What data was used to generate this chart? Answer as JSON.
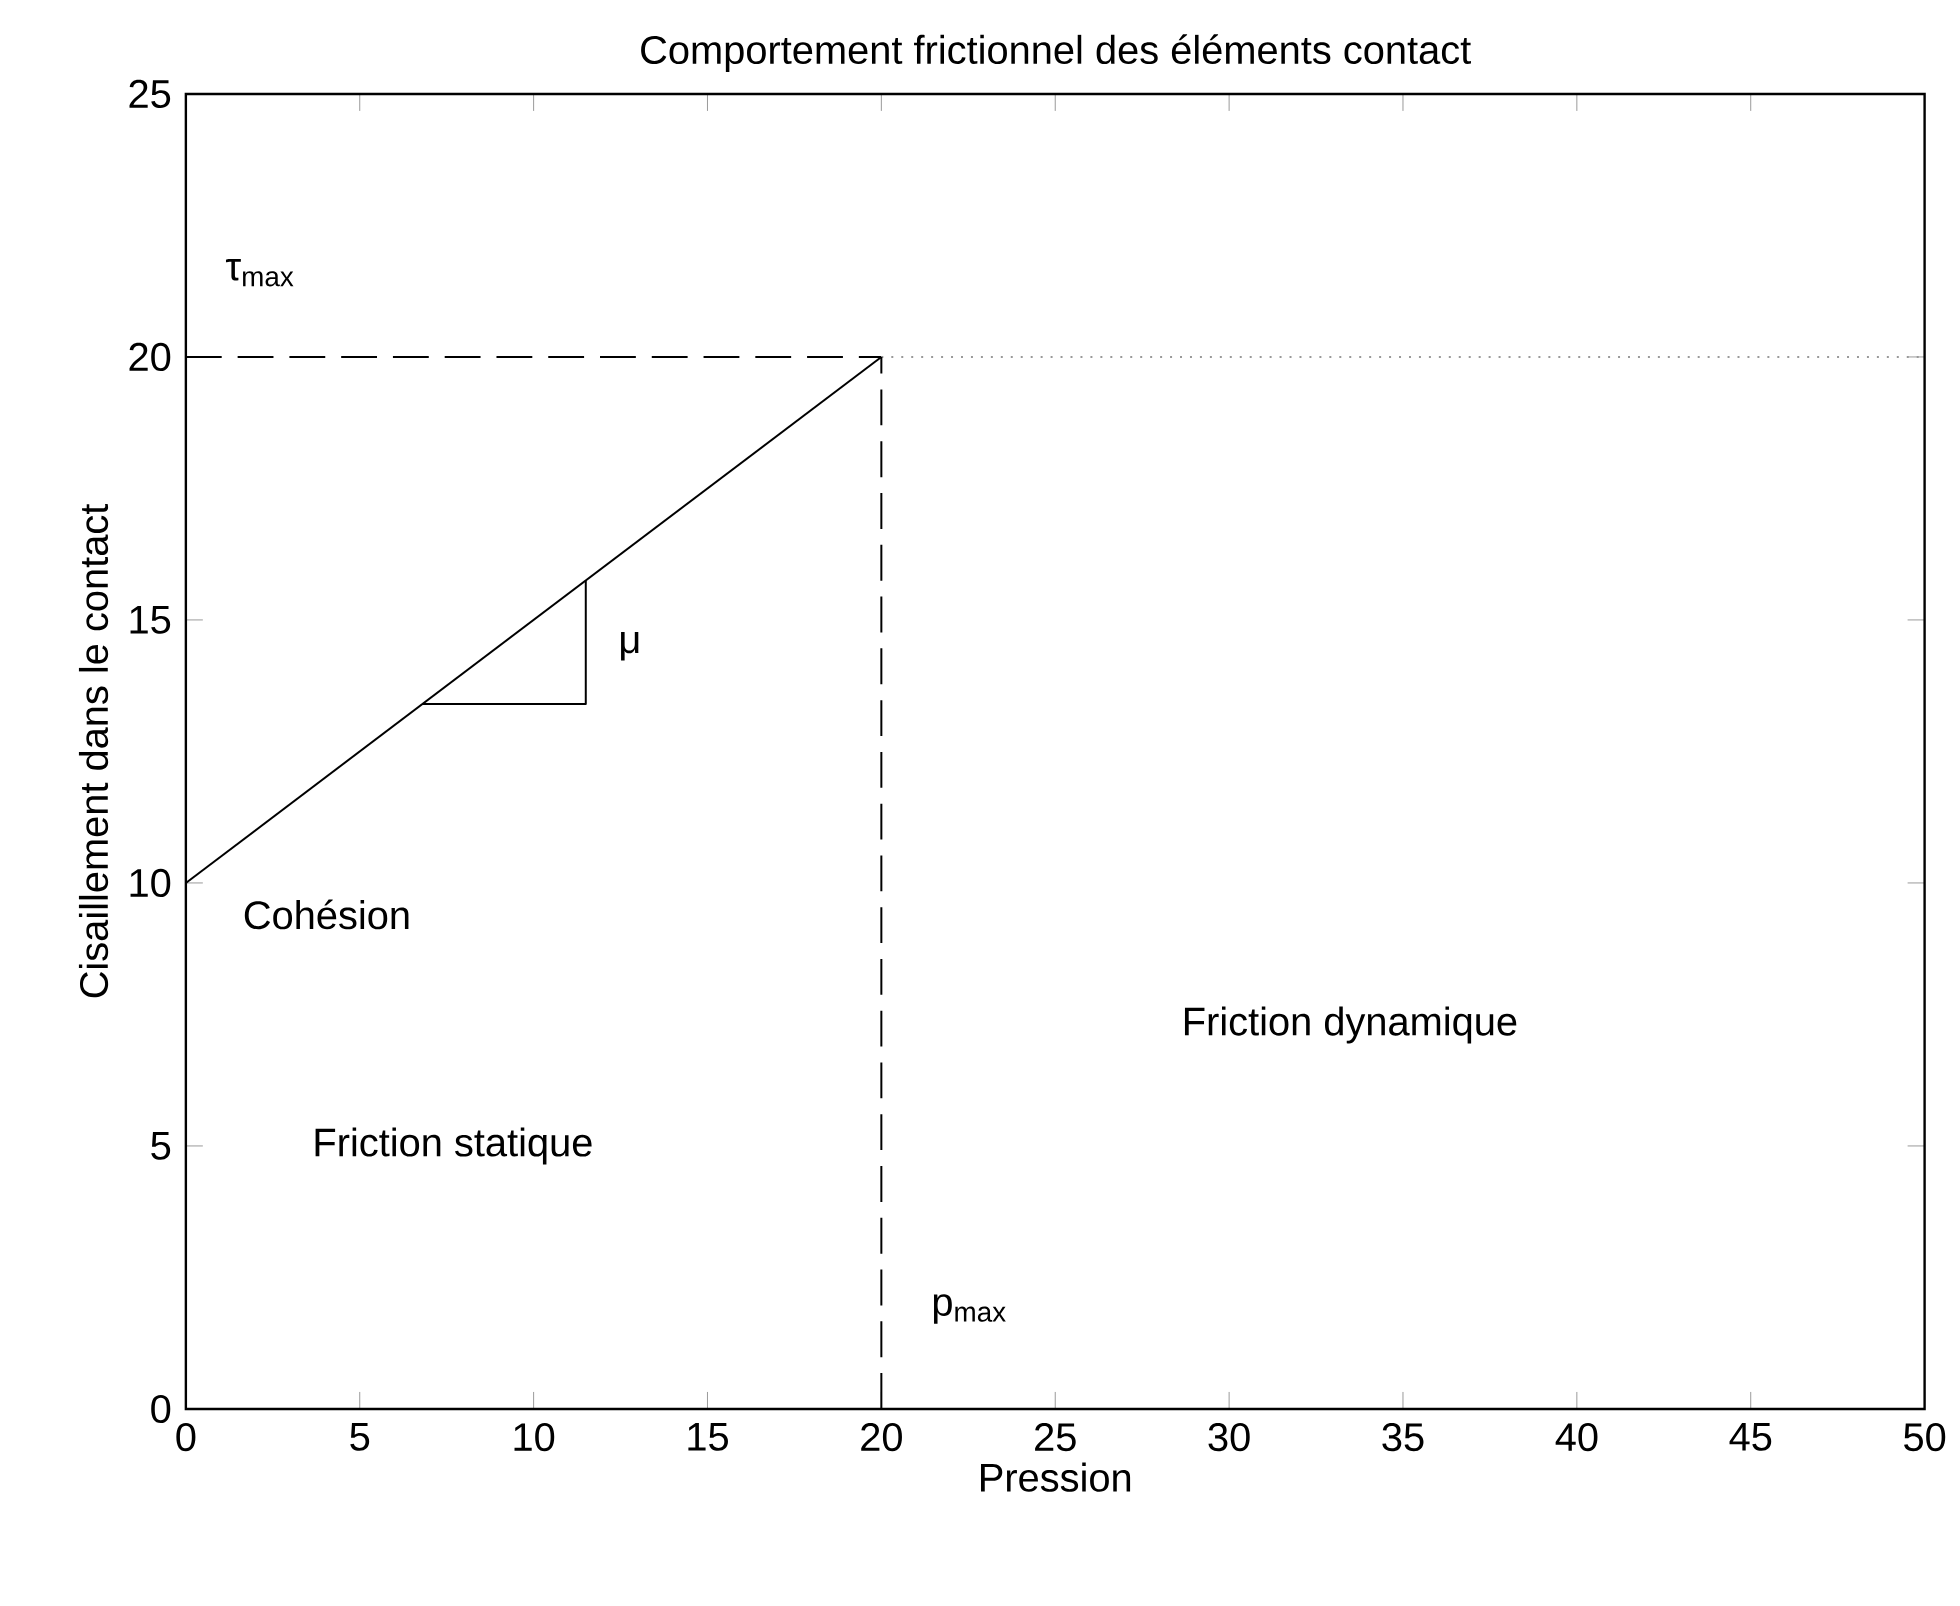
{
  "chart_data": {
    "type": "line",
    "title": "Comportement frictionnel des éléments contact",
    "xlabel": "Pression",
    "ylabel": "Cisaillement dans le contact",
    "xlim": [
      0,
      50
    ],
    "ylim": [
      0,
      25
    ],
    "xticks": [
      0,
      5,
      10,
      15,
      20,
      25,
      30,
      35,
      40,
      45,
      50
    ],
    "yticks": [
      0,
      5,
      10,
      15,
      20,
      25
    ],
    "series": [
      {
        "x": [
          0,
          20
        ],
        "values": [
          10,
          20
        ],
        "color": "#000000",
        "line_style": "solid"
      },
      {
        "x": [
          0,
          20
        ],
        "values": [
          20,
          20
        ],
        "color": "#000000",
        "line_style": "dashed"
      },
      {
        "x": [
          20,
          50
        ],
        "values": [
          20,
          20
        ],
        "color": "#999999",
        "line_style": "dotted"
      },
      {
        "x": [
          20,
          20
        ],
        "values": [
          0,
          20
        ],
        "color": "#000000",
        "line_style": "dashed"
      },
      {
        "x": [
          6.8,
          11.5,
          11.5
        ],
        "values": [
          13.4,
          13.4,
          15.75
        ],
        "color": "#000000",
        "line_style": "solid"
      }
    ],
    "annotations": [
      "τ$_{max}$",
      "μ",
      "Cohésion",
      "Friction statique",
      "Friction dynamique",
      "p$_{max}$"
    ]
  }
}
